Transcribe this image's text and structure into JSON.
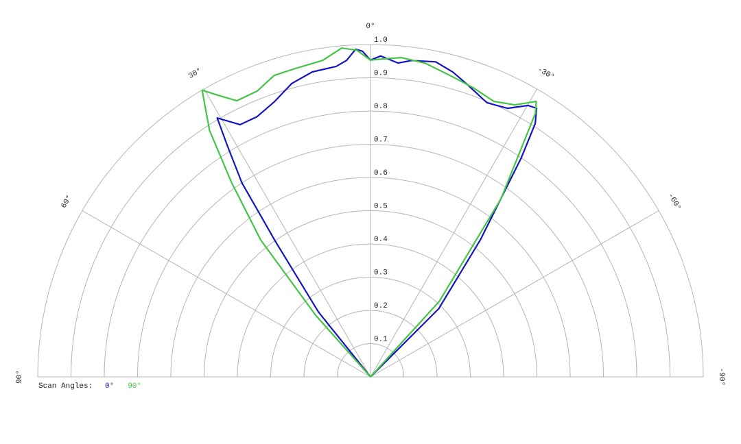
{
  "chart_data": {
    "type": "polar",
    "xlim": [
      -90,
      90
    ],
    "xticks": [
      {
        "value": 90,
        "label": "90°"
      },
      {
        "value": 60,
        "label": "60°"
      },
      {
        "value": 30,
        "label": "30°"
      },
      {
        "value": 0,
        "label": "0°"
      },
      {
        "value": -30,
        "label": "-30°"
      },
      {
        "value": -60,
        "label": "-60°"
      },
      {
        "value": -90,
        "label": "-90°"
      }
    ],
    "ylim": [
      0,
      1
    ],
    "yticks": [
      0.1,
      0.2,
      0.3,
      0.4,
      0.5,
      0.6,
      0.7,
      0.8,
      0.9,
      {
        "value": 1,
        "label": "1.0"
      }
    ],
    "grid": true,
    "legend_title": "Scan Angles:",
    "series": [
      {
        "name": "0°",
        "color": "#1414c4",
        "x": [
          41,
          38.7,
          35,
          33.5,
          31.7,
          30.6,
          27.3,
          23.5,
          19.2,
          15.0,
          10.8,
          6.3,
          4.3,
          2.6,
          1.4,
          0,
          -1.8,
          -5,
          -7.4,
          -11.7,
          -15.1,
          -18.1,
          -23,
          -27,
          -30.1,
          -31.7,
          -33,
          -34.5,
          -38.7,
          -45,
          -45
        ],
        "values": [
          0,
          0.25,
          0.5,
          0.7,
          0.82,
          0.905,
          0.854,
          0.854,
          0.877,
          0.914,
          0.934,
          0.94,
          0.955,
          0.987,
          0.98,
          0.953,
          0.966,
          0.948,
          0.96,
          0.968,
          0.95,
          0.928,
          0.896,
          0.907,
          0.944,
          0.95,
          0.909,
          0.8,
          0.528,
          0.29,
          0
        ]
      },
      {
        "name": "90°",
        "color": "#44c444",
        "x": [
          42,
          41.6,
          38.7,
          35.5,
          33.1,
          30.4,
          28.2,
          25.8,
          21.6,
          17.7,
          13.7,
          8.6,
          5.0,
          2.4,
          0,
          -2.5,
          -5.5,
          -9.9,
          -15.3,
          -19.6,
          -24.1,
          -27.9,
          -31,
          -32,
          -36.2,
          -42.3,
          -43
        ],
        "values": [
          0,
          0.248,
          0.528,
          0.72,
          0.886,
          1.0,
          0.96,
          0.923,
          0.925,
          0.952,
          0.955,
          0.963,
          0.993,
          0.984,
          0.953,
          0.958,
          0.965,
          0.958,
          0.936,
          0.923,
          0.908,
          0.926,
          0.967,
          0.935,
          0.664,
          0.307,
          0
        ]
      }
    ]
  }
}
